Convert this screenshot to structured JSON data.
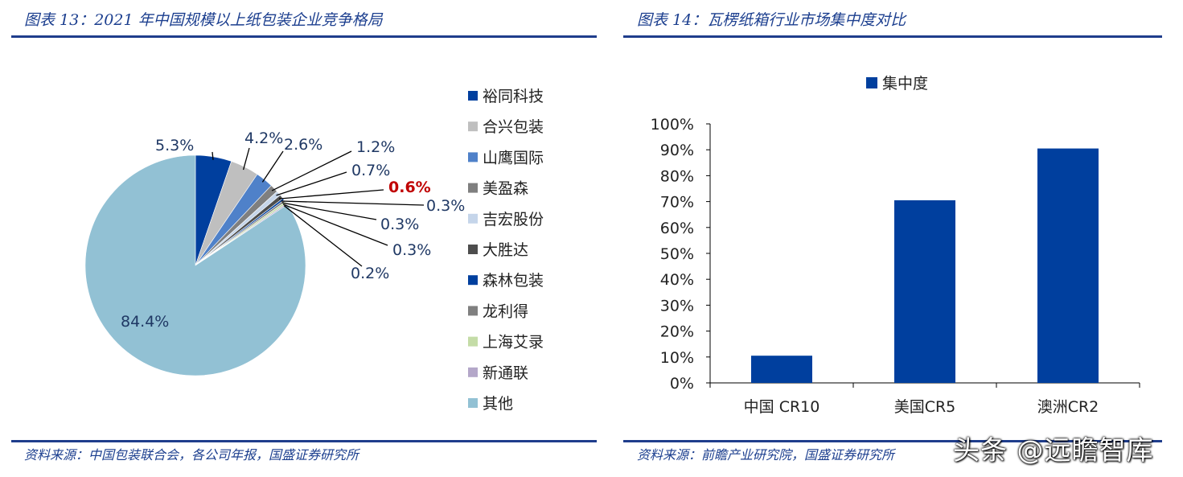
{
  "left": {
    "title": "图表 13：2021 年中国规模以上纸包装企业竞争格局",
    "source": "资料来源：中国包装联合会，各公司年报，国盛证券研究所"
  },
  "right": {
    "title": "图表 14：瓦楞纸箱行业市场集中度对比",
    "source": "资料来源：前瞻产业研究院，国盛证券研究所"
  },
  "watermark": "头条 @远瞻智库",
  "chart_data": [
    {
      "type": "pie",
      "title": "",
      "legend_position": "right",
      "slices": [
        {
          "name": "裕同科技",
          "value": 5.3,
          "label": "5.3%",
          "color": "#003f9e"
        },
        {
          "name": "合兴包装",
          "value": 4.2,
          "label": "4.2%",
          "color": "#bfbfbf"
        },
        {
          "name": "山鹰国际",
          "value": 2.6,
          "label": "2.6%",
          "color": "#4f81c9"
        },
        {
          "name": "美盈森",
          "value": 1.2,
          "label": "1.2%",
          "color": "#7f7f7f"
        },
        {
          "name": "吉宏股份",
          "value": 0.7,
          "label": "0.7%",
          "color": "#c5d5ea"
        },
        {
          "name": "大胜达",
          "value": 0.6,
          "label": "0.6%",
          "color": "#4d4d4d",
          "highlight": true
        },
        {
          "name": "森林包装",
          "value": 0.3,
          "label": "0.3%",
          "color": "#003f9e"
        },
        {
          "name": "龙利得",
          "value": 0.3,
          "label": "0.3%",
          "color": "#808080"
        },
        {
          "name": "上海艾录",
          "value": 0.3,
          "label": "0.3%",
          "color": "#c4dca7"
        },
        {
          "name": "新通联",
          "value": 0.2,
          "label": "0.2%",
          "color": "#b4a7c9"
        },
        {
          "name": "其他",
          "value": 84.4,
          "label": "84.4%",
          "color": "#92c1d4"
        }
      ]
    },
    {
      "type": "bar",
      "title": "",
      "categories": [
        "中国 CR10",
        "美国CR5",
        "澳洲CR2"
      ],
      "series": [
        {
          "name": "集中度",
          "values": [
            10.5,
            70.5,
            90.5
          ],
          "color": "#003f9e"
        }
      ],
      "ylim": [
        0,
        100
      ],
      "yticks": [
        "0%",
        "10%",
        "20%",
        "30%",
        "40%",
        "50%",
        "60%",
        "70%",
        "80%",
        "90%",
        "100%"
      ],
      "legend_position": "top"
    }
  ]
}
